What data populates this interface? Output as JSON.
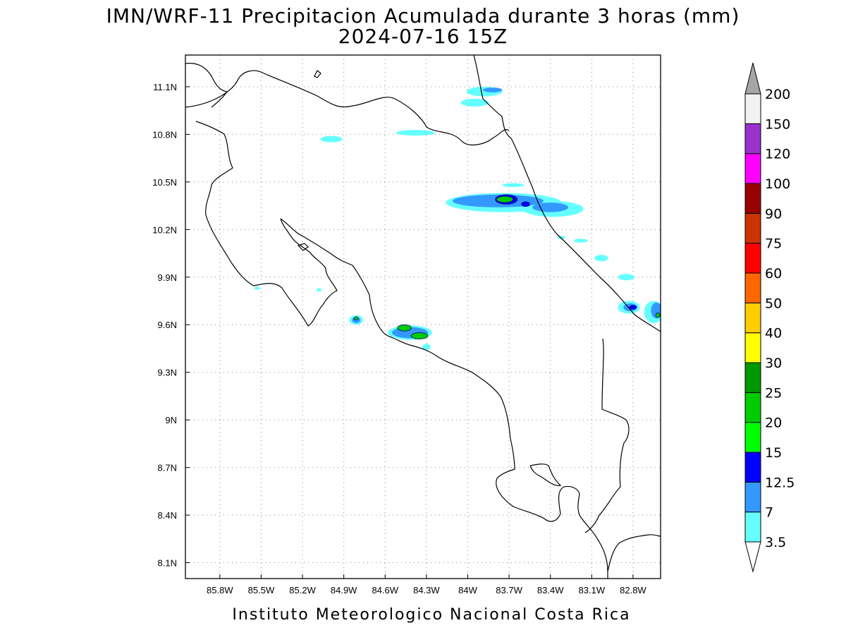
{
  "title": {
    "line1": "IMN/WRF-11 Precipitacion Acumulada durante 3 horas (mm)",
    "line2": "2024-07-16 15Z"
  },
  "credit": "Instituto Meteorologico Nacional Costa Rica",
  "map": {
    "lon_range": [
      -86.05,
      -82.6
    ],
    "lat_range": [
      8.0,
      11.3
    ],
    "lon_ticks": [
      {
        "value": -85.8,
        "label": "85.8W"
      },
      {
        "value": -85.5,
        "label": "85.5W"
      },
      {
        "value": -85.2,
        "label": "85.2W"
      },
      {
        "value": -84.9,
        "label": "84.9W"
      },
      {
        "value": -84.6,
        "label": "84.6W"
      },
      {
        "value": -84.3,
        "label": "84.3W"
      },
      {
        "value": -84.0,
        "label": "84W"
      },
      {
        "value": -83.7,
        "label": "83.7W"
      },
      {
        "value": -83.4,
        "label": "83.4W"
      },
      {
        "value": -83.1,
        "label": "83.1W"
      },
      {
        "value": -82.8,
        "label": "82.8W"
      }
    ],
    "lat_ticks": [
      {
        "value": 11.1,
        "label": "11.1N"
      },
      {
        "value": 10.8,
        "label": "10.8N"
      },
      {
        "value": 10.5,
        "label": "10.5N"
      },
      {
        "value": 10.2,
        "label": "10.2N"
      },
      {
        "value": 9.9,
        "label": "9.9N"
      },
      {
        "value": 9.6,
        "label": "9.6N"
      },
      {
        "value": 9.3,
        "label": "9.3N"
      },
      {
        "value": 9.0,
        "label": "9N"
      },
      {
        "value": 8.7,
        "label": "8.7N"
      },
      {
        "value": 8.4,
        "label": "8.4N"
      },
      {
        "value": 8.1,
        "label": "8.1N"
      }
    ],
    "grid": "dotted"
  },
  "colorbar": {
    "levels": [
      "3.5",
      "7",
      "12.5",
      "15",
      "20",
      "25",
      "30",
      "40",
      "50",
      "60",
      "75",
      "90",
      "100",
      "120",
      "150",
      "200"
    ],
    "colors": [
      "#66ffff",
      "#3399ff",
      "#0000ff",
      "#00ff00",
      "#00cc00",
      "#009900",
      "#ffff00",
      "#ffcc00",
      "#ff6600",
      "#ff0000",
      "#cc3300",
      "#990000",
      "#ff00ff",
      "#9933cc",
      "#f2f2f2"
    ],
    "over_color": "#a6a6a6",
    "under_color": "#ffffff"
  },
  "precip_cells": [
    {
      "lon": -83.88,
      "lat": 11.07,
      "rlon": 0.13,
      "rlat": 0.03,
      "level": 0
    },
    {
      "lon": -83.95,
      "lat": 11.0,
      "rlon": 0.1,
      "rlat": 0.025,
      "level": 0
    },
    {
      "lon": -83.82,
      "lat": 11.08,
      "rlon": 0.07,
      "rlat": 0.015,
      "level": 1
    },
    {
      "lon": -84.99,
      "lat": 10.77,
      "rlon": 0.08,
      "rlat": 0.02,
      "level": 0
    },
    {
      "lon": -84.38,
      "lat": 10.81,
      "rlon": 0.14,
      "rlat": 0.018,
      "level": 0
    },
    {
      "lon": -83.74,
      "lat": 10.37,
      "rlon": 0.42,
      "rlat": 0.06,
      "level": 0
    },
    {
      "lon": -83.38,
      "lat": 10.33,
      "rlon": 0.22,
      "rlat": 0.05,
      "level": 0
    },
    {
      "lon": -83.78,
      "lat": 10.38,
      "rlon": 0.33,
      "rlat": 0.04,
      "level": 1
    },
    {
      "lon": -83.4,
      "lat": 10.34,
      "rlon": 0.13,
      "rlat": 0.03,
      "level": 1
    },
    {
      "lon": -83.72,
      "lat": 10.39,
      "rlon": 0.08,
      "rlat": 0.03,
      "level": 2
    },
    {
      "lon": -83.58,
      "lat": 10.36,
      "rlon": 0.03,
      "rlat": 0.015,
      "level": 2
    },
    {
      "lon": -83.73,
      "lat": 10.39,
      "rlon": 0.06,
      "rlat": 0.02,
      "level": 4
    },
    {
      "lon": -83.67,
      "lat": 10.48,
      "rlon": 0.08,
      "rlat": 0.012,
      "level": 0
    },
    {
      "lon": -83.32,
      "lat": 10.15,
      "rlon": 0.03,
      "rlat": 0.01,
      "level": 0
    },
    {
      "lon": -83.18,
      "lat": 10.13,
      "rlon": 0.05,
      "rlat": 0.012,
      "level": 0
    },
    {
      "lon": -83.03,
      "lat": 10.02,
      "rlon": 0.05,
      "rlat": 0.02,
      "level": 0
    },
    {
      "lon": -82.85,
      "lat": 9.9,
      "rlon": 0.06,
      "rlat": 0.02,
      "level": 0
    },
    {
      "lon": -82.83,
      "lat": 9.71,
      "rlon": 0.08,
      "rlat": 0.04,
      "level": 0
    },
    {
      "lon": -82.82,
      "lat": 9.71,
      "rlon": 0.05,
      "rlat": 0.025,
      "level": 1
    },
    {
      "lon": -82.8,
      "lat": 9.71,
      "rlon": 0.025,
      "rlat": 0.012,
      "level": 2
    },
    {
      "lon": -82.65,
      "lat": 9.68,
      "rlon": 0.07,
      "rlat": 0.07,
      "level": 0
    },
    {
      "lon": -82.63,
      "lat": 9.69,
      "rlon": 0.04,
      "rlat": 0.05,
      "level": 1
    },
    {
      "lon": -82.62,
      "lat": 9.66,
      "rlon": 0.015,
      "rlat": 0.015,
      "level": 4
    },
    {
      "lon": -84.81,
      "lat": 9.63,
      "rlon": 0.05,
      "rlat": 0.03,
      "level": 0
    },
    {
      "lon": -84.81,
      "lat": 9.63,
      "rlon": 0.03,
      "rlat": 0.02,
      "level": 1
    },
    {
      "lon": -84.81,
      "lat": 9.64,
      "rlon": 0.015,
      "rlat": 0.01,
      "level": 4
    },
    {
      "lon": -84.42,
      "lat": 9.55,
      "rlon": 0.16,
      "rlat": 0.045,
      "level": 0
    },
    {
      "lon": -84.42,
      "lat": 9.55,
      "rlon": 0.13,
      "rlat": 0.035,
      "level": 1
    },
    {
      "lon": -84.46,
      "lat": 9.58,
      "rlon": 0.05,
      "rlat": 0.02,
      "level": 4
    },
    {
      "lon": -84.35,
      "lat": 9.53,
      "rlon": 0.06,
      "rlat": 0.02,
      "level": 4
    },
    {
      "lon": -84.3,
      "lat": 9.46,
      "rlon": 0.03,
      "rlat": 0.02,
      "level": 0
    },
    {
      "lon": -85.53,
      "lat": 9.83,
      "rlon": 0.02,
      "rlat": 0.01,
      "level": 0
    },
    {
      "lon": -85.08,
      "lat": 9.82,
      "rlon": 0.02,
      "rlat": 0.01,
      "level": 0
    }
  ]
}
